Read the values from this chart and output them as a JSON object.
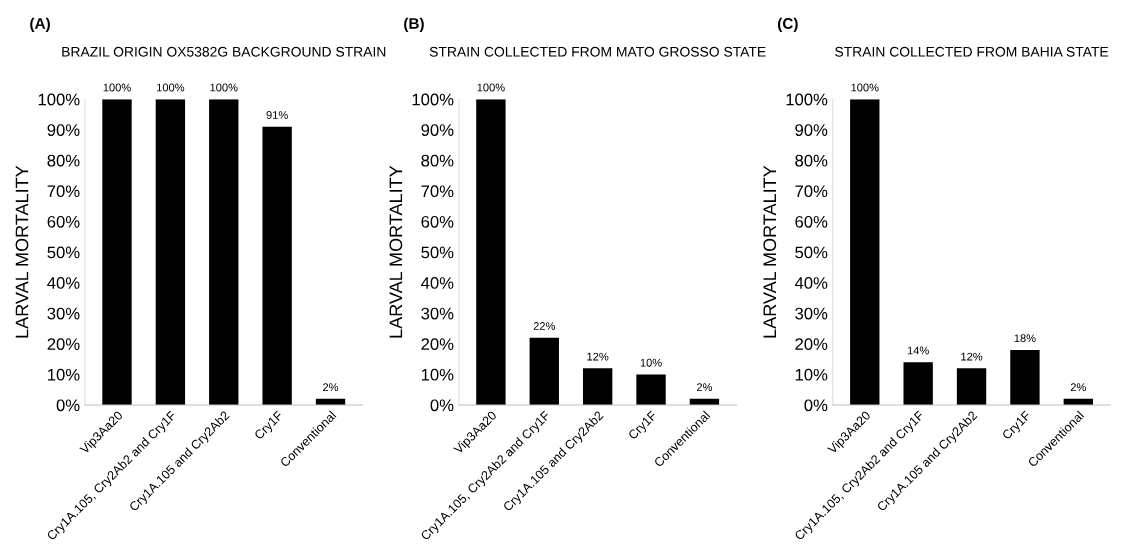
{
  "chart_data": [
    {
      "type": "bar",
      "title": "(A)",
      "subtitle": "BRAZIL ORIGIN OX5382G BACKGROUND STRAIN",
      "ylabel": "LARVAL MORTALITY",
      "categories": [
        "Vip3Aa20",
        "Cry1A.105, Cry2Ab2 and Cry1F",
        "Cry1A.105 and Cry2Ab2",
        "Cry1F",
        "Conventional"
      ],
      "values": [
        100,
        100,
        100,
        91,
        2
      ],
      "value_labels": [
        "100%",
        "100%",
        "100%",
        "91%",
        "2%"
      ],
      "color": "#000000",
      "ylim": [
        0,
        100
      ],
      "yticks": [
        {
          "value": 0,
          "label": "0%"
        },
        {
          "value": 10,
          "label": "10%"
        },
        {
          "value": 20,
          "label": "20%"
        },
        {
          "value": 30,
          "label": "30%"
        },
        {
          "value": 40,
          "label": "40%"
        },
        {
          "value": 50,
          "label": "50%"
        },
        {
          "value": 60,
          "label": "60%"
        },
        {
          "value": 70,
          "label": "70%"
        },
        {
          "value": 80,
          "label": "80%"
        },
        {
          "value": 90,
          "label": "90%"
        },
        {
          "value": 100,
          "label": "100%"
        }
      ]
    },
    {
      "type": "bar",
      "title": "(B)",
      "subtitle": "STRAIN COLLECTED FROM MATO GROSSO STATE",
      "ylabel": "LARVAL MORTALITY",
      "categories": [
        "Vip3Aa20",
        "Cry1A.105, Cry2Ab2 and Cry1F",
        "Cry1A.105 and Cry2Ab2",
        "Cry1F",
        "Conventional"
      ],
      "values": [
        100,
        22,
        12,
        10,
        2
      ],
      "value_labels": [
        "100%",
        "22%",
        "12%",
        "10%",
        "2%"
      ],
      "color": "#000000",
      "ylim": [
        0,
        100
      ],
      "yticks": [
        {
          "value": 0,
          "label": "0%"
        },
        {
          "value": 10,
          "label": "10%"
        },
        {
          "value": 20,
          "label": "20%"
        },
        {
          "value": 30,
          "label": "30%"
        },
        {
          "value": 40,
          "label": "40%"
        },
        {
          "value": 50,
          "label": "50%"
        },
        {
          "value": 60,
          "label": "60%"
        },
        {
          "value": 70,
          "label": "70%"
        },
        {
          "value": 80,
          "label": "80%"
        },
        {
          "value": 90,
          "label": "90%"
        },
        {
          "value": 100,
          "label": "100%"
        }
      ]
    },
    {
      "type": "bar",
      "title": "(C)",
      "subtitle": "STRAIN COLLECTED FROM BAHIA STATE",
      "ylabel": "LARVAL MORTALITY",
      "categories": [
        "Vip3Aa20",
        "Cry1A.105, Cry2Ab2 and Cry1F",
        "Cry1A.105 and Cry2Ab2",
        "Cry1F",
        "Conventional"
      ],
      "values": [
        100,
        14,
        12,
        18,
        2
      ],
      "value_labels": [
        "100%",
        "14%",
        "12%",
        "18%",
        "2%"
      ],
      "color": "#000000",
      "ylim": [
        0,
        100
      ],
      "yticks": [
        {
          "value": 0,
          "label": "0%"
        },
        {
          "value": 10,
          "label": "10%"
        },
        {
          "value": 20,
          "label": "20%"
        },
        {
          "value": 30,
          "label": "30%"
        },
        {
          "value": 40,
          "label": "40%"
        },
        {
          "value": 50,
          "label": "50%"
        },
        {
          "value": 60,
          "label": "60%"
        },
        {
          "value": 70,
          "label": "70%"
        },
        {
          "value": 80,
          "label": "80%"
        },
        {
          "value": 90,
          "label": "90%"
        },
        {
          "value": 100,
          "label": "100%"
        }
      ]
    }
  ]
}
